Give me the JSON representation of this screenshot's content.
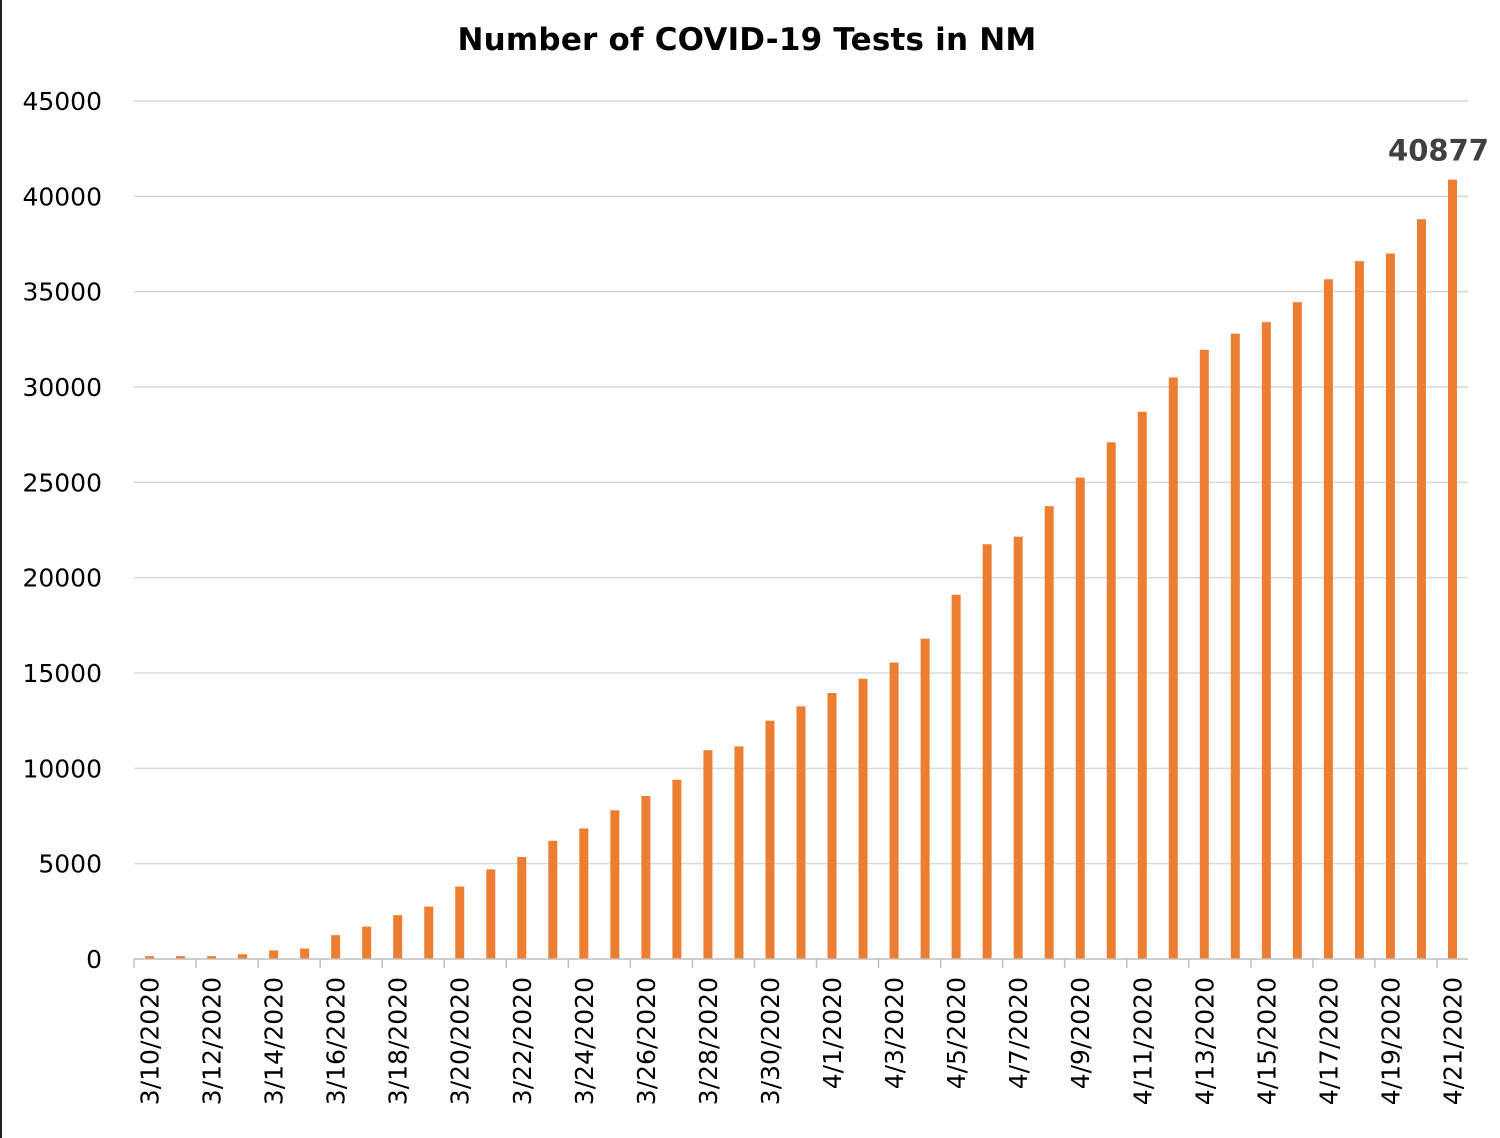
{
  "chart_data": {
    "type": "bar",
    "title": "Number of COVID-19 Tests in NM",
    "xlabel": "",
    "ylabel": "",
    "ylim": [
      0,
      45000
    ],
    "y_ticks": [
      0,
      5000,
      10000,
      15000,
      20000,
      25000,
      30000,
      35000,
      40000,
      45000
    ],
    "y_tick_labels": [
      "0",
      "5000",
      "10000",
      "15000",
      "20000",
      "25000",
      "30000",
      "35000",
      "40000",
      "45000"
    ],
    "grid": true,
    "bar_color": "#ED7D31",
    "categories": [
      "3/10/2020",
      "3/11/2020",
      "3/12/2020",
      "3/13/2020",
      "3/14/2020",
      "3/15/2020",
      "3/16/2020",
      "3/17/2020",
      "3/18/2020",
      "3/19/2020",
      "3/20/2020",
      "3/21/2020",
      "3/22/2020",
      "3/23/2020",
      "3/24/2020",
      "3/25/2020",
      "3/26/2020",
      "3/27/2020",
      "3/28/2020",
      "3/29/2020",
      "3/30/2020",
      "3/31/2020",
      "4/1/2020",
      "4/2/2020",
      "4/3/2020",
      "4/4/2020",
      "4/5/2020",
      "4/6/2020",
      "4/7/2020",
      "4/8/2020",
      "4/9/2020",
      "4/10/2020",
      "4/11/2020",
      "4/12/2020",
      "4/13/2020",
      "4/14/2020",
      "4/15/2020",
      "4/16/2020",
      "4/17/2020",
      "4/18/2020",
      "4/19/2020",
      "4/20/2020",
      "4/21/2020"
    ],
    "x_tick_labels_shown": [
      "3/10/2020",
      "3/12/2020",
      "3/14/2020",
      "3/16/2020",
      "3/18/2020",
      "3/20/2020",
      "3/22/2020",
      "3/24/2020",
      "3/26/2020",
      "3/28/2020",
      "3/30/2020",
      "4/1/2020",
      "4/3/2020",
      "4/5/2020",
      "4/7/2020",
      "4/9/2020",
      "4/11/2020",
      "4/13/2020",
      "4/15/2020",
      "4/17/2020",
      "4/19/2020",
      "4/21/2020"
    ],
    "values": [
      150,
      150,
      150,
      250,
      450,
      550,
      1250,
      1700,
      2300,
      2750,
      3800,
      4700,
      5350,
      6200,
      6850,
      7800,
      8550,
      9400,
      10950,
      11150,
      12500,
      13250,
      13950,
      14700,
      15550,
      16800,
      19100,
      21750,
      22150,
      23750,
      25250,
      27100,
      28700,
      30500,
      31950,
      32800,
      33400,
      34450,
      35650,
      36600,
      37000,
      38800,
      40877
    ],
    "annotations": [
      {
        "category": "4/21/2020",
        "text": "40877"
      }
    ]
  }
}
